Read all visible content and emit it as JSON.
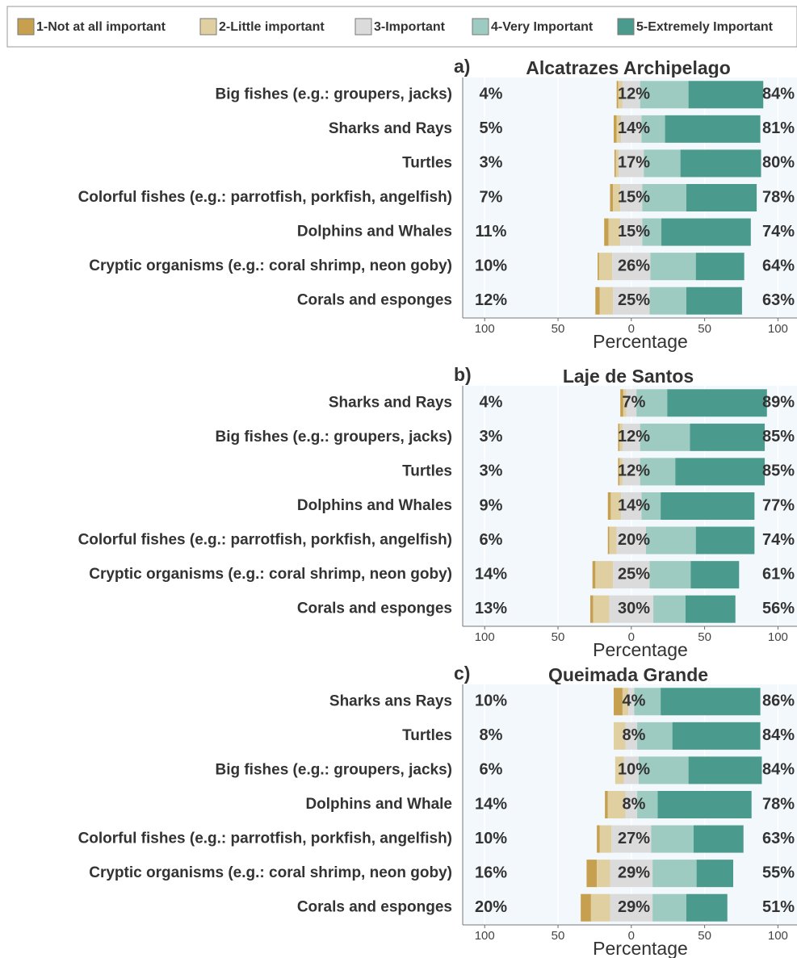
{
  "chart_data": [
    {
      "type": "bar",
      "label": "a)",
      "title": "Alcatrazes Archipelago",
      "xlabel": "Percentage",
      "categories": [
        "Big fishes (e.g.: groupers, jacks)",
        "Sharks and Rays",
        "Turtles",
        "Colorful fishes (e.g.: parrotfish, porkfish, angelfish)",
        "Dolphins and Whales",
        "Cryptic organisms (e.g.: coral shrimp, neon goby)",
        "Corals and esponges"
      ],
      "series": [
        {
          "name": "1-Not at all important",
          "color": "#c6a04e",
          "values": [
            1,
            2,
            1,
            2,
            3,
            1,
            3
          ]
        },
        {
          "name": "2-Little important",
          "color": "#dfcfa1",
          "values": [
            3,
            3,
            2,
            5,
            8,
            9,
            9
          ]
        },
        {
          "name": "3-Important",
          "color": "#dcdbdb",
          "values": [
            12,
            14,
            17,
            15,
            15,
            26,
            25
          ],
          "value_labels": [
            "12%",
            "14%",
            "17%",
            "15%",
            "15%",
            "26%",
            "25%"
          ]
        },
        {
          "name": "4-Very Important",
          "color": "#9ecbc1",
          "values": [
            33,
            16,
            25,
            30,
            13,
            31,
            25
          ]
        },
        {
          "name": "5-Extremely Important",
          "color": "#4a9b8d",
          "values": [
            51,
            65,
            55,
            48,
            61,
            33,
            38
          ]
        }
      ],
      "low_labels": [
        "4%",
        "5%",
        "3%",
        "7%",
        "11%",
        "10%",
        "12%"
      ],
      "high_labels": [
        "84%",
        "81%",
        "80%",
        "78%",
        "74%",
        "64%",
        "63%"
      ],
      "xlim": [
        -115,
        113
      ],
      "xticks": [
        {
          "value": -100,
          "label": "100"
        },
        {
          "value": -50,
          "label": "50"
        },
        0,
        50,
        100
      ]
    },
    {
      "type": "bar",
      "label": "b)",
      "title": "Laje de Santos",
      "xlabel": "Percentage",
      "categories": [
        "Sharks and Rays",
        "Big fishes (e.g.: groupers, jacks)",
        "Turtles",
        "Dolphins and Whales",
        "Colorful fishes (e.g.: parrotfish, porkfish, angelfish)",
        "Cryptic organisms (e.g.: coral shrimp, neon goby)",
        "Corals and esponges"
      ],
      "series": [
        {
          "name": "1-Not at all important",
          "color": "#c6a04e",
          "values": [
            2,
            1,
            1,
            2,
            1,
            2,
            2
          ]
        },
        {
          "name": "2-Little important",
          "color": "#dfcfa1",
          "values": [
            2,
            2,
            2,
            7,
            5,
            12,
            11
          ]
        },
        {
          "name": "3-Important",
          "color": "#dcdbdb",
          "values": [
            7,
            12,
            12,
            14,
            20,
            25,
            30
          ],
          "value_labels": [
            "7%",
            "12%",
            "12%",
            "14%",
            "20%",
            "25%",
            "30%"
          ]
        },
        {
          "name": "4-Very Important",
          "color": "#9ecbc1",
          "values": [
            21,
            34,
            24,
            13,
            34,
            28,
            22
          ]
        },
        {
          "name": "5-Extremely Important",
          "color": "#4a9b8d",
          "values": [
            68,
            51,
            61,
            64,
            40,
            33,
            34
          ]
        }
      ],
      "low_labels": [
        "4%",
        "3%",
        "3%",
        "9%",
        "6%",
        "14%",
        "13%"
      ],
      "high_labels": [
        "89%",
        "85%",
        "85%",
        "77%",
        "74%",
        "61%",
        "56%"
      ],
      "xlim": [
        -115,
        113
      ],
      "xticks": [
        {
          "value": -100,
          "label": "100"
        },
        {
          "value": -50,
          "label": "50"
        },
        0,
        50,
        100
      ]
    },
    {
      "type": "bar",
      "label": "c)",
      "title": "Queimada Grande",
      "xlabel": "Percentage",
      "categories": [
        "Sharks ans Rays",
        "Turtles",
        "Big fishes (e.g.: groupers, jacks)",
        "Dolphins and Whale",
        "Colorful fishes (e.g.: parrotfish, porkfish, angelfish)",
        "Cryptic organisms (e.g.: coral shrimp, neon goby)",
        "Corals and esponges"
      ],
      "series": [
        {
          "name": "1-Not at all important",
          "color": "#c6a04e",
          "values": [
            6,
            0,
            0,
            2,
            2,
            7,
            7
          ]
        },
        {
          "name": "2-Little important",
          "color": "#dfcfa1",
          "values": [
            4,
            8,
            6,
            12,
            8,
            9,
            13
          ]
        },
        {
          "name": "3-Important",
          "color": "#dcdbdb",
          "values": [
            4,
            8,
            10,
            8,
            27,
            29,
            29
          ],
          "value_labels": [
            "4%",
            "8%",
            "10%",
            "8%",
            "27%",
            "29%",
            "29%"
          ]
        },
        {
          "name": "4-Very Important",
          "color": "#9ecbc1",
          "values": [
            18,
            24,
            34,
            14,
            29,
            30,
            23
          ]
        },
        {
          "name": "5-Extremely Important",
          "color": "#4a9b8d",
          "values": [
            68,
            60,
            50,
            64,
            34,
            25,
            28
          ]
        }
      ],
      "low_labels": [
        "10%",
        "8%",
        "6%",
        "14%",
        "10%",
        "16%",
        "20%"
      ],
      "high_labels": [
        "86%",
        "84%",
        "84%",
        "78%",
        "63%",
        "55%",
        "51%"
      ],
      "xlim": [
        -115,
        113
      ],
      "xticks": [
        {
          "value": -100,
          "label": "100"
        },
        {
          "value": -50,
          "label": "50"
        },
        0,
        50,
        100
      ]
    }
  ]
}
